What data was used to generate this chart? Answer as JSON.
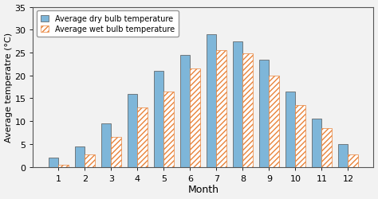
{
  "months": [
    1,
    2,
    3,
    4,
    5,
    6,
    7,
    8,
    9,
    10,
    11,
    12
  ],
  "dry_bulb": [
    2.0,
    4.5,
    9.5,
    16.0,
    21.0,
    24.5,
    29.0,
    27.5,
    23.5,
    16.5,
    10.5,
    5.0
  ],
  "wet_bulb": [
    0.5,
    2.8,
    6.5,
    13.0,
    16.5,
    21.5,
    25.5,
    24.8,
    20.0,
    13.5,
    8.5,
    2.8
  ],
  "dry_color": "#7EB6D9",
  "wet_color": "#FFFFFF",
  "wet_hatch_color": "#E8833A",
  "dry_label": "Average dry bulb temperature",
  "wet_label": "Average wet bulb temperature",
  "xlabel": "Month",
  "ylabel": "Average temperatre (°C)",
  "ylim": [
    0,
    35
  ],
  "yticks": [
    0,
    5,
    10,
    15,
    20,
    25,
    30,
    35
  ],
  "bar_width": 0.38,
  "bg_color": "#F2F2F2"
}
